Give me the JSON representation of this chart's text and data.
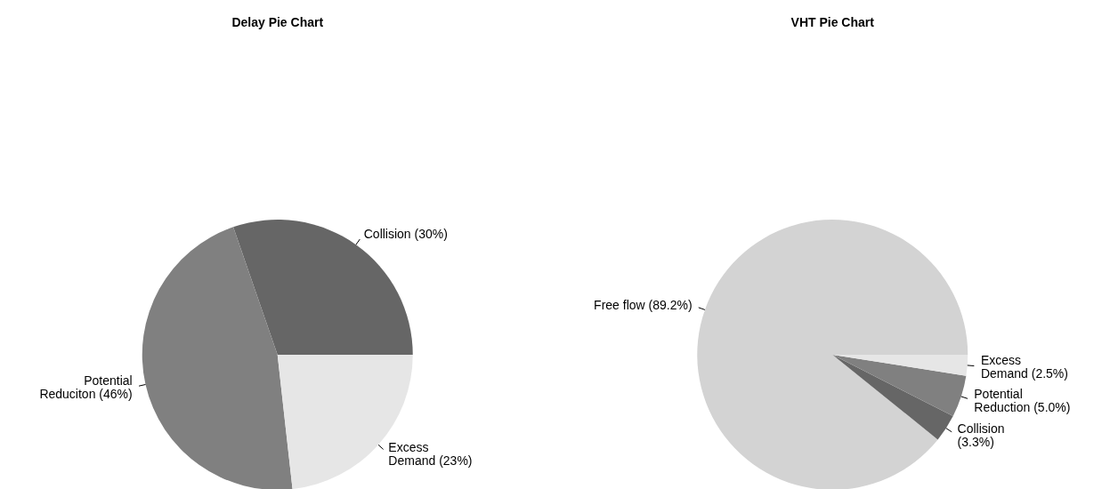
{
  "chart_data": [
    {
      "type": "pie",
      "title": "Delay Pie Chart",
      "categories": [
        "Collision (30%)",
        "Potential\nReduciton (46%)",
        "Excess\nDemand (23%)"
      ],
      "values": [
        30,
        46,
        23
      ],
      "colors": [
        "#666666",
        "#808080",
        "#e6e6e6"
      ]
    },
    {
      "type": "pie",
      "title": "VHT Pie Chart",
      "categories": [
        "Free flow (89.2%)",
        "Collision\n(3.3%)",
        "Potential\nReduction (5.0%)",
        "Excess\nDemand (2.5%)"
      ],
      "values": [
        89.2,
        3.3,
        5.0,
        2.5
      ],
      "colors": [
        "#d3d3d3",
        "#666666",
        "#808080",
        "#e6e6e6"
      ]
    }
  ]
}
